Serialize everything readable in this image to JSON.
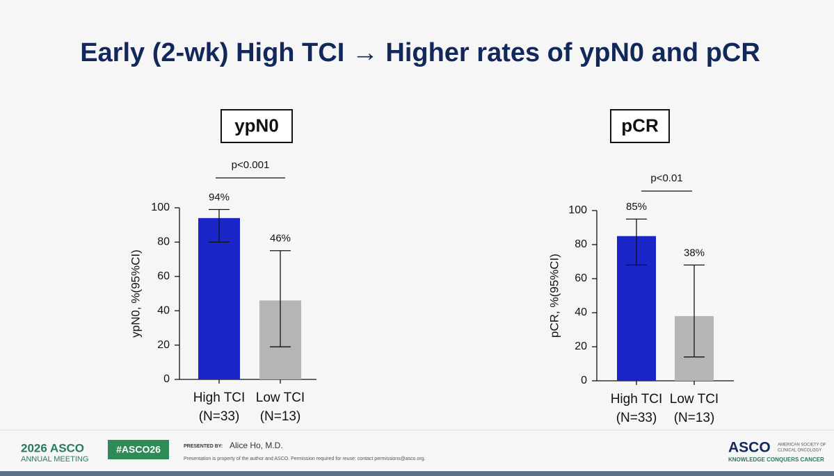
{
  "title": "Early (2-wk) High TCI → Higher rates of ypN0 and pCR",
  "chart_data": [
    {
      "type": "bar",
      "title": "ypN0",
      "y_label": "ypN0, %(95%CI)",
      "categories": [
        "High TCI",
        "Low TCI"
      ],
      "category_notes": [
        "(N=33)",
        "(N=13)"
      ],
      "values": [
        94,
        46
      ],
      "value_labels": [
        "94%",
        "46%"
      ],
      "ci_low": [
        80,
        19
      ],
      "ci_high": [
        99,
        75
      ],
      "colors": [
        "#1a25c8",
        "#b5b5b5"
      ],
      "annotation": "p<0.001",
      "ylim": [
        0,
        100
      ],
      "yticks": [
        0,
        20,
        40,
        60,
        80,
        100
      ]
    },
    {
      "type": "bar",
      "title": "pCR",
      "y_label": "pCR, %(95%CI)",
      "categories": [
        "High TCI",
        "Low TCI"
      ],
      "category_notes": [
        "(N=33)",
        "(N=13)"
      ],
      "values": [
        85,
        38
      ],
      "value_labels": [
        "85%",
        "38%"
      ],
      "ci_low": [
        68,
        14
      ],
      "ci_high": [
        95,
        68
      ],
      "colors": [
        "#1a25c8",
        "#b5b5b5"
      ],
      "annotation": "p<0.01",
      "ylim": [
        0,
        100
      ],
      "yticks": [
        0,
        20,
        40,
        60,
        80,
        100
      ]
    }
  ],
  "footer": {
    "meeting_year": "2026 ASCO",
    "meeting_name": "ANNUAL MEETING",
    "hashtag": "#ASCO26",
    "presented_by": "PRESENTED BY:",
    "presenter": "Alice Ho, M.D.",
    "notice": "Presentation is property of the author and ASCO. Permission required for reuse; contact permissions@asco.org.",
    "org": "ASCO",
    "org_full_1": "AMERICAN SOCIETY OF",
    "org_full_2": "CLINICAL ONCOLOGY",
    "tagline": "KNOWLEDGE CONQUERS CANCER"
  }
}
